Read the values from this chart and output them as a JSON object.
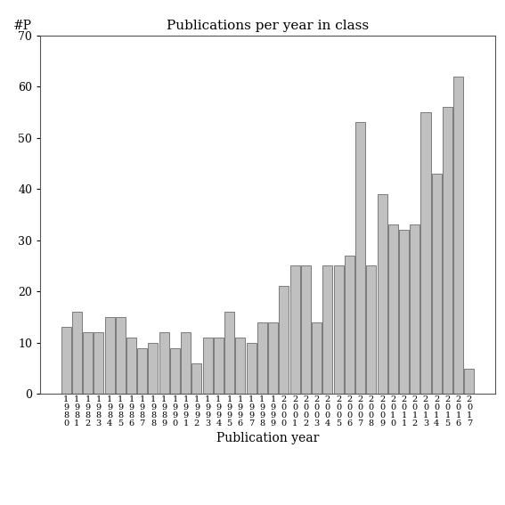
{
  "title": "Publications per year in class",
  "xlabel": "Publication year",
  "ylabel": "#P",
  "ylim": [
    0,
    70
  ],
  "yticks": [
    0,
    10,
    20,
    30,
    40,
    50,
    60,
    70
  ],
  "bar_color": "#c0c0c0",
  "bar_edgecolor": "#555555",
  "background_color": "#ffffff",
  "years": [
    1980,
    1981,
    1982,
    1983,
    1984,
    1985,
    1986,
    1987,
    1988,
    1989,
    1990,
    1991,
    1992,
    1993,
    1994,
    1995,
    1996,
    1997,
    1998,
    1999,
    2000,
    2001,
    2002,
    2003,
    2004,
    2005,
    2006,
    2007,
    2008,
    2009,
    2010,
    2011,
    2012,
    2013,
    2014,
    2015,
    2016,
    2017
  ],
  "values": [
    13,
    16,
    12,
    12,
    15,
    15,
    11,
    9,
    10,
    12,
    9,
    12,
    6,
    11,
    11,
    16,
    11,
    10,
    14,
    14,
    21,
    25,
    25,
    14,
    25,
    25,
    27,
    53,
    25,
    39,
    33,
    32,
    33,
    55,
    43,
    56,
    62,
    5
  ]
}
